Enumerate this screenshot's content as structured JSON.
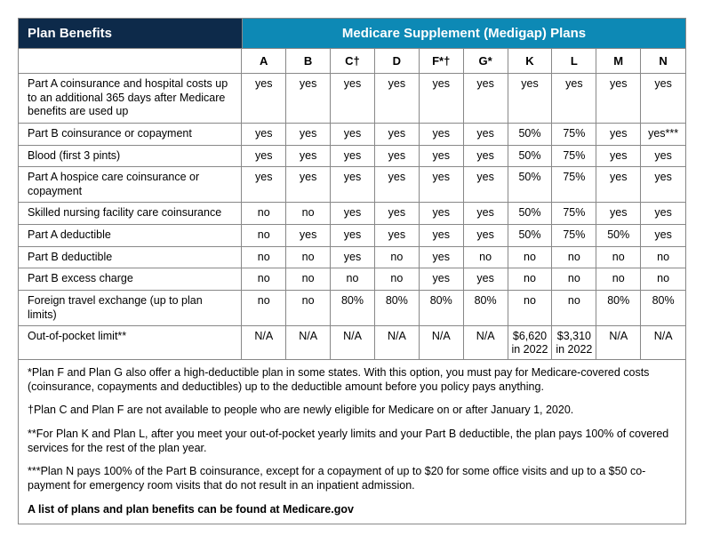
{
  "header": {
    "left": "Plan Benefits",
    "right": "Medicare Supplement (Medigap) Plans"
  },
  "colors": {
    "hdr_left_bg": "#0d2a4a",
    "hdr_right_bg": "#0d89b5",
    "border": "#888888",
    "text": "#000000",
    "hdr_text": "#ffffff"
  },
  "plans": [
    "A",
    "B",
    "C†",
    "D",
    "F*†",
    "G*",
    "K",
    "L",
    "M",
    "N"
  ],
  "rows": [
    {
      "benefit": "Part A coinsurance and hospital costs up to an additional 365 days after Medicare benefits are used up",
      "vals": [
        "yes",
        "yes",
        "yes",
        "yes",
        "yes",
        "yes",
        "yes",
        "yes",
        "yes",
        "yes"
      ]
    },
    {
      "benefit": "Part B coinsurance or copayment",
      "vals": [
        "yes",
        "yes",
        "yes",
        "yes",
        "yes",
        "yes",
        "50%",
        "75%",
        "yes",
        "yes***"
      ]
    },
    {
      "benefit": "Blood (first 3 pints)",
      "vals": [
        "yes",
        "yes",
        "yes",
        "yes",
        "yes",
        "yes",
        "50%",
        "75%",
        "yes",
        "yes"
      ]
    },
    {
      "benefit": "Part A hospice care coinsurance or copayment",
      "vals": [
        "yes",
        "yes",
        "yes",
        "yes",
        "yes",
        "yes",
        "50%",
        "75%",
        "yes",
        "yes"
      ]
    },
    {
      "benefit": "Skilled nursing facility care coinsurance",
      "vals": [
        "no",
        "no",
        "yes",
        "yes",
        "yes",
        "yes",
        "50%",
        "75%",
        "yes",
        "yes"
      ]
    },
    {
      "benefit": "Part A deductible",
      "vals": [
        "no",
        "yes",
        "yes",
        "yes",
        "yes",
        "yes",
        "50%",
        "75%",
        "50%",
        "yes"
      ]
    },
    {
      "benefit": "Part B deductible",
      "vals": [
        "no",
        "no",
        "yes",
        "no",
        "yes",
        "no",
        "no",
        "no",
        "no",
        "no"
      ]
    },
    {
      "benefit": "Part B excess charge",
      "vals": [
        "no",
        "no",
        "no",
        "no",
        "yes",
        "yes",
        "no",
        "no",
        "no",
        "no"
      ]
    },
    {
      "benefit": "Foreign travel exchange (up to plan limits)",
      "vals": [
        "no",
        "no",
        "80%",
        "80%",
        "80%",
        "80%",
        "no",
        "no",
        "80%",
        "80%"
      ]
    },
    {
      "benefit": "Out-of-pocket limit**",
      "vals": [
        "N/A",
        "N/A",
        "N/A",
        "N/A",
        "N/A",
        "N/A",
        "$6,620 in 2022",
        "$3,310 in 2022",
        "N/A",
        "N/A"
      ]
    }
  ],
  "notes": [
    "*Plan F and Plan G also offer a high-deductible plan in some states. With this option, you must pay for Medicare-covered costs (coinsurance, copayments and deductibles) up to the deductible amount before you policy pays anything.",
    "†Plan C and Plan F are not available to people who are newly eligible for Medicare on or after January 1, 2020.",
    "**For Plan K and Plan L, after you meet your out-of-pocket yearly limits and your Part B deductible, the plan pays 100% of covered services for the rest of the plan year.",
    "***Plan N pays 100% of the Part B coinsurance, except for a copayment of up to $20 for some office visits and up to a $50 co-payment for emergency room visits that do not result in an inpatient admission."
  ],
  "footer": "A list of plans and plan benefits can be found at Medicare.gov"
}
